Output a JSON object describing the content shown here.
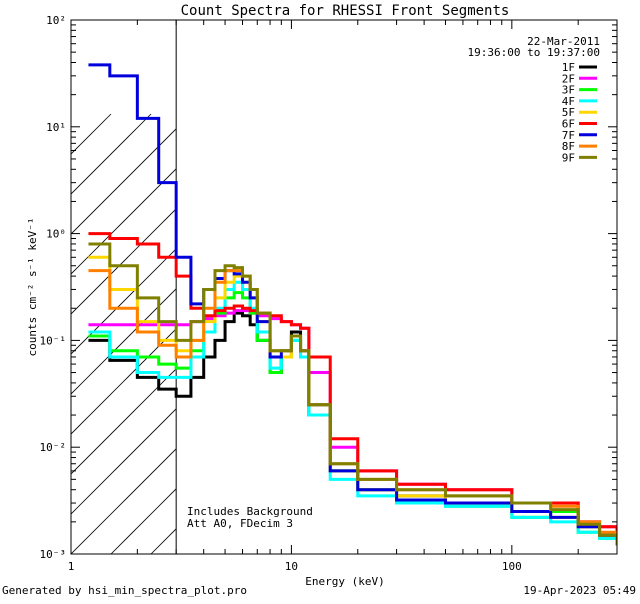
{
  "chart_data": {
    "type": "line",
    "title": "Count Spectra for RHESSI Front Segments",
    "xlabel": "Energy (keV)",
    "ylabel": "counts cm⁻² s⁻¹ keV⁻¹",
    "xscale": "log",
    "yscale": "log",
    "xlim": [
      1,
      300
    ],
    "ylim": [
      0.001,
      100
    ],
    "x_tick_labels": [
      "1",
      "10",
      "100"
    ],
    "y_tick_labels": [
      "10⁻³",
      "10⁻²",
      "10⁻¹",
      "10⁰",
      "10¹",
      "10²"
    ],
    "date": "22-Mar-2011",
    "time_range": "19:36:00 to 19:37:00",
    "annotations": [
      "Includes Background",
      "Att A0, FDecim 3"
    ],
    "hatched_region_upper_keV": 3,
    "footer_left": "Generated by hsi_min_spectra_plot.pro",
    "footer_right": "19-Apr-2023 05:49",
    "energy_keV": [
      1.2,
      1.5,
      2.0,
      2.5,
      3.0,
      3.5,
      4.0,
      4.5,
      5.0,
      5.5,
      6.0,
      6.5,
      7.0,
      8.0,
      9.0,
      10.0,
      11.0,
      12.0,
      15.0,
      20.0,
      30.0,
      50.0,
      100.0,
      150.0,
      200.0,
      250.0,
      300.0
    ],
    "series": [
      {
        "name": "1F",
        "color": "#000000",
        "values": [
          0.1,
          0.065,
          0.045,
          0.035,
          0.03,
          0.045,
          0.07,
          0.1,
          0.15,
          0.18,
          0.17,
          0.14,
          0.1,
          0.05,
          0.07,
          0.12,
          0.08,
          0.02,
          0.006,
          0.004,
          0.0035,
          0.003,
          0.0025,
          0.0025,
          0.0018,
          0.0015,
          0.0012
        ]
      },
      {
        "name": "2F",
        "color": "#ff00ff",
        "values": [
          0.14,
          0.14,
          0.14,
          0.14,
          0.14,
          0.15,
          0.16,
          0.17,
          0.18,
          0.19,
          0.19,
          0.18,
          0.17,
          0.16,
          0.15,
          0.14,
          0.13,
          0.05,
          0.01,
          0.006,
          0.0045,
          0.004,
          0.003,
          0.003,
          0.002,
          0.0018,
          0.0015
        ]
      },
      {
        "name": "3F",
        "color": "#00ff00",
        "values": [
          0.11,
          0.08,
          0.07,
          0.06,
          0.055,
          0.08,
          0.12,
          0.18,
          0.25,
          0.28,
          0.25,
          0.18,
          0.1,
          0.05,
          0.07,
          0.1,
          0.07,
          0.02,
          0.006,
          0.004,
          0.003,
          0.0028,
          0.0022,
          0.0025,
          0.0016,
          0.0014,
          0.0012
        ]
      },
      {
        "name": "4F",
        "color": "#00ffff",
        "values": [
          0.12,
          0.07,
          0.05,
          0.045,
          0.045,
          0.07,
          0.12,
          0.2,
          0.3,
          0.35,
          0.3,
          0.2,
          0.12,
          0.055,
          0.07,
          0.1,
          0.07,
          0.02,
          0.005,
          0.0035,
          0.003,
          0.0028,
          0.0022,
          0.002,
          0.0016,
          0.0014,
          0.0012
        ]
      },
      {
        "name": "5F",
        "color": "#ffd700",
        "values": [
          0.6,
          0.3,
          0.15,
          0.1,
          0.08,
          0.1,
          0.15,
          0.25,
          0.35,
          0.4,
          0.35,
          0.25,
          0.15,
          0.07,
          0.07,
          0.11,
          0.08,
          0.025,
          0.006,
          0.004,
          0.0035,
          0.003,
          0.0025,
          0.0022,
          0.0018,
          0.0015,
          0.0012
        ]
      },
      {
        "name": "6F",
        "color": "#ff0000",
        "values": [
          1.0,
          0.9,
          0.8,
          0.6,
          0.4,
          0.2,
          0.17,
          0.19,
          0.2,
          0.21,
          0.2,
          0.19,
          0.18,
          0.17,
          0.15,
          0.14,
          0.13,
          0.07,
          0.012,
          0.006,
          0.0045,
          0.004,
          0.003,
          0.003,
          0.002,
          0.0018,
          0.0015
        ]
      },
      {
        "name": "7F",
        "color": "#0000dd",
        "values": [
          38,
          30,
          12,
          3,
          0.6,
          0.22,
          0.3,
          0.38,
          0.45,
          0.42,
          0.35,
          0.25,
          0.15,
          0.07,
          0.08,
          0.11,
          0.08,
          0.025,
          0.006,
          0.004,
          0.0032,
          0.003,
          0.0025,
          0.0022,
          0.0018,
          0.0015,
          0.0012
        ]
      },
      {
        "name": "8F",
        "color": "#ff8000",
        "values": [
          0.45,
          0.2,
          0.12,
          0.09,
          0.07,
          0.1,
          0.2,
          0.35,
          0.45,
          0.45,
          0.4,
          0.3,
          0.18,
          0.08,
          0.08,
          0.11,
          0.08,
          0.025,
          0.007,
          0.005,
          0.004,
          0.0035,
          0.003,
          0.0028,
          0.002,
          0.0016,
          0.0013
        ]
      },
      {
        "name": "9F",
        "color": "#808000",
        "values": [
          0.8,
          0.5,
          0.25,
          0.15,
          0.1,
          0.15,
          0.3,
          0.45,
          0.5,
          0.48,
          0.4,
          0.3,
          0.18,
          0.08,
          0.08,
          0.11,
          0.08,
          0.025,
          0.007,
          0.005,
          0.004,
          0.0035,
          0.003,
          0.0026,
          0.0019,
          0.0015,
          0.0012
        ]
      }
    ]
  }
}
